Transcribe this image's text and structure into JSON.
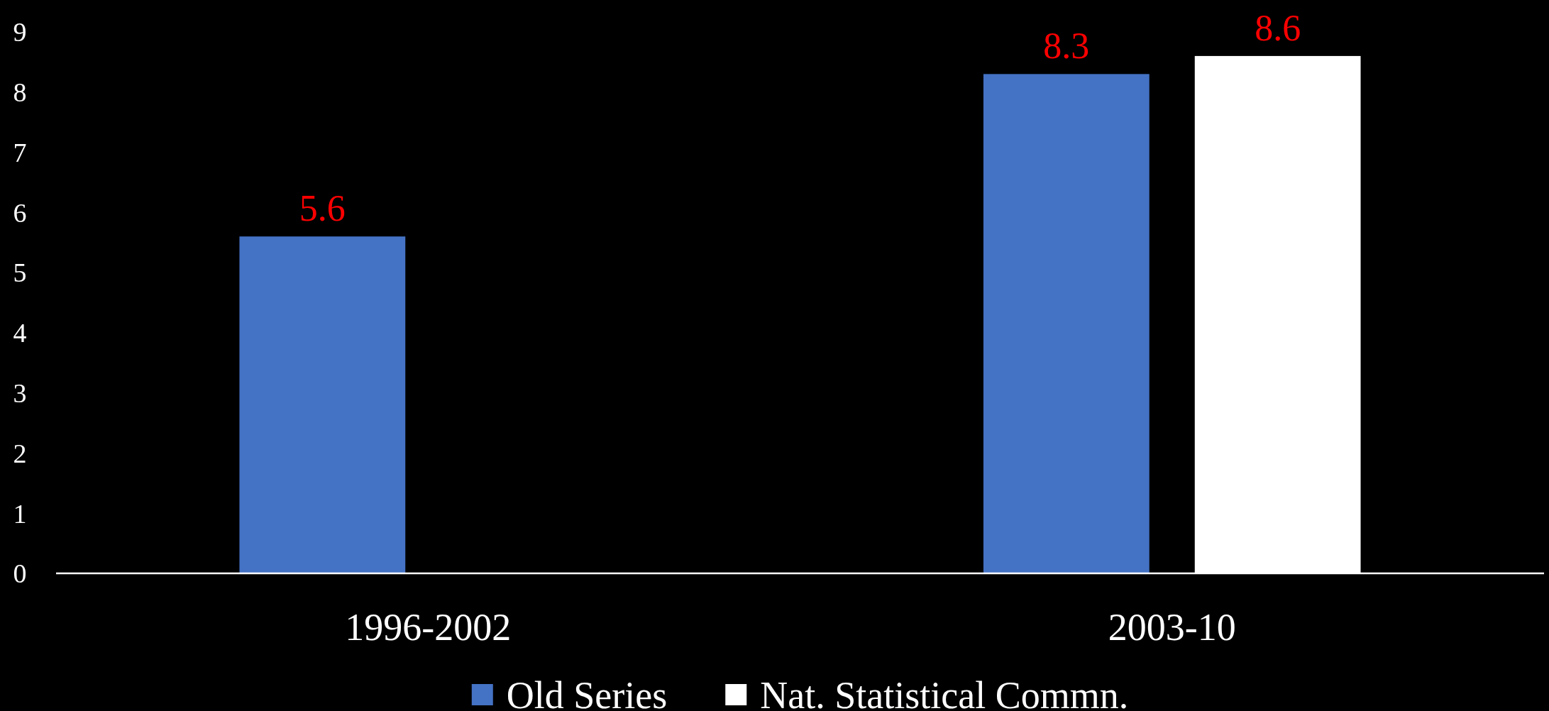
{
  "chart_data": {
    "type": "bar",
    "categories": [
      "1996-2002",
      "2003-10"
    ],
    "series": [
      {
        "name": "Old Series",
        "color": "#4472c4",
        "values": [
          5.6,
          8.3
        ]
      },
      {
        "name": "Nat. Statistical Commn.",
        "color": "#ffffff",
        "values": [
          null,
          8.6
        ]
      }
    ],
    "ylim": [
      0,
      9
    ],
    "yticks": [
      0,
      1,
      2,
      3,
      4,
      5,
      6,
      7,
      8,
      9
    ],
    "data_labels": true,
    "legend": "bottom"
  }
}
